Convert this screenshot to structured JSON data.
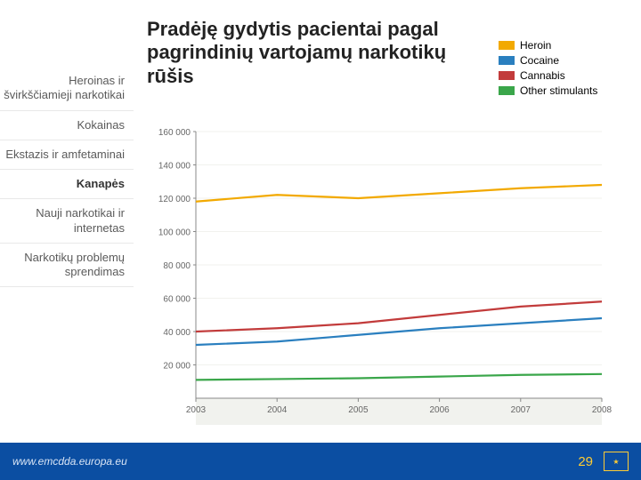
{
  "title": "Pradėję gydytis pacientai pagal pagrindinių vartojamų narkotikų rūšis",
  "sidebar": {
    "items": [
      {
        "label": "Heroinas ir švirkščiamieji narkotikai",
        "bold": false
      },
      {
        "label": "Kokainas",
        "bold": false
      },
      {
        "label": "Ekstazis ir amfetaminai",
        "bold": false
      },
      {
        "label": "Kanapės",
        "bold": true
      },
      {
        "label": "Nauji narkotikai ir internetas",
        "bold": false
      },
      {
        "label": "Narkotikų problemų sprendimas",
        "bold": false
      }
    ]
  },
  "legend": {
    "items": [
      {
        "label": "Heroin",
        "color": "#f2a900"
      },
      {
        "label": "Cocaine",
        "color": "#2a7fbf"
      },
      {
        "label": "Cannabis",
        "color": "#c23b3b"
      },
      {
        "label": "Other stimulants",
        "color": "#3aa64a"
      }
    ]
  },
  "chart": {
    "type": "line",
    "ylabel": "number",
    "background_color": "#f1f2ee",
    "plot_background": "#ffffff",
    "grid_color": "#f1f2ee",
    "axis_color": "#888888",
    "tick_fontsize": 10,
    "tick_color": "#666666",
    "xlim": [
      2003,
      2008
    ],
    "ylim": [
      0,
      160000
    ],
    "ytick_step": 20000,
    "xticks": [
      2003,
      2004,
      2005,
      2006,
      2007,
      2008
    ],
    "yticks_labels": [
      "20 000",
      "40 000",
      "60 000",
      "80 000",
      "100 000",
      "120 000",
      "140 000",
      "160 000"
    ],
    "line_width": 2.2,
    "series": [
      {
        "name": "Heroin",
        "color": "#f2a900",
        "values": {
          "2003": 118000,
          "2004": 122000,
          "2005": 120000,
          "2006": 123000,
          "2007": 126000,
          "2008": 128000
        }
      },
      {
        "name": "Cannabis",
        "color": "#c23b3b",
        "values": {
          "2003": 40000,
          "2004": 42000,
          "2005": 45000,
          "2006": 50000,
          "2007": 55000,
          "2008": 58000
        }
      },
      {
        "name": "Cocaine",
        "color": "#2a7fbf",
        "values": {
          "2003": 32000,
          "2004": 34000,
          "2005": 38000,
          "2006": 42000,
          "2007": 45000,
          "2008": 48000
        }
      },
      {
        "name": "Other stimulants",
        "color": "#3aa64a",
        "values": {
          "2003": 11000,
          "2004": 11500,
          "2005": 12000,
          "2006": 13000,
          "2007": 14000,
          "2008": 14500
        }
      }
    ]
  },
  "footer": {
    "url": "www.emcdda.europa.eu",
    "page_number": "29"
  },
  "colors": {
    "footer_bg": "#0b4ea2",
    "accent_yellow": "#ffcc33"
  }
}
